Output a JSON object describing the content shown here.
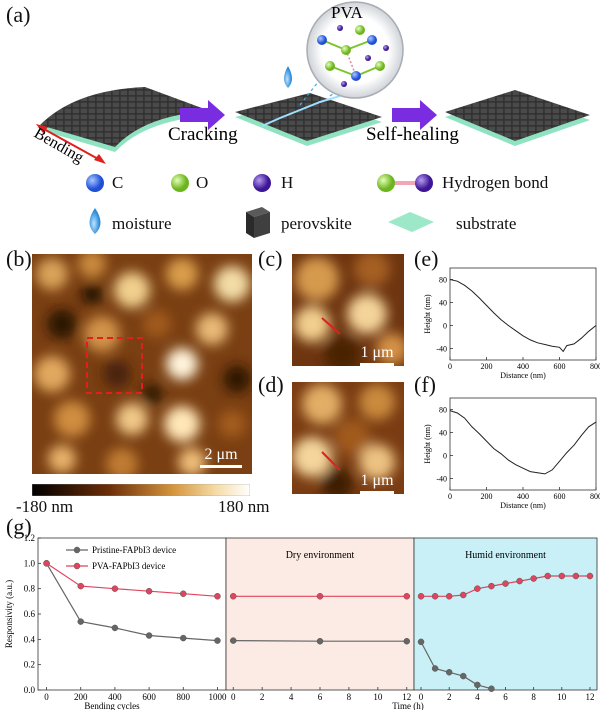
{
  "panels": {
    "a": "(a)",
    "b": "(b)",
    "c": "(c)",
    "d": "(d)",
    "e": "(e)",
    "f": "(f)",
    "g": "(g)"
  },
  "schematic": {
    "bubble_label": "PVA",
    "bending_label": "Bending",
    "cracking_label": "Cracking",
    "self_healing_label": "Self-healing",
    "legend": {
      "C": "C",
      "O": "O",
      "H": "H",
      "hbond": "Hydrogen bond",
      "moisture": "moisture",
      "perovskite": "perovskite",
      "substrate": "substrate"
    },
    "colors": {
      "C": "#1f4fd6",
      "O": "#7dc42c",
      "H": "#4b1ca8",
      "substrate": "#9de8c8",
      "arrow": "#7a2de0",
      "moisture": "#3a9be0",
      "perovskite": "#3a3a3a"
    }
  },
  "afm": {
    "scale_b": "2 μm",
    "scale_c": "1 μm",
    "scale_d": "1 μm",
    "colorbar_min": "-180 nm",
    "colorbar_max": "180 nm"
  },
  "chart_data": [
    {
      "id": "e",
      "type": "line",
      "xlabel": "Distance (nm)",
      "ylabel": "Height (nm)",
      "xlim": [
        0,
        800
      ],
      "ylim": [
        -60,
        100
      ],
      "xticks": [
        "0",
        "200",
        "400",
        "600",
        "800"
      ],
      "yticks": [
        "-40",
        "0",
        "40",
        "80"
      ],
      "series": [
        {
          "x": [
            0,
            40,
            80,
            120,
            160,
            200,
            240,
            280,
            320,
            360,
            400,
            440,
            480,
            520,
            560,
            600,
            620,
            640,
            680,
            720,
            760,
            800
          ],
          "y": [
            80,
            77,
            70,
            60,
            48,
            35,
            22,
            10,
            0,
            -9,
            -18,
            -25,
            -30,
            -33,
            -36,
            -38,
            -45,
            -35,
            -32,
            -22,
            -10,
            0
          ]
        }
      ]
    },
    {
      "id": "f",
      "type": "line",
      "xlabel": "Distance (nm)",
      "ylabel": "Height (nm)",
      "xlim": [
        0,
        800
      ],
      "ylim": [
        -60,
        100
      ],
      "xticks": [
        "0",
        "200",
        "400",
        "600",
        "800"
      ],
      "yticks": [
        "-40",
        "0",
        "40",
        "80"
      ],
      "series": [
        {
          "x": [
            0,
            40,
            80,
            120,
            160,
            200,
            240,
            280,
            320,
            360,
            400,
            440,
            480,
            520,
            560,
            600,
            640,
            680,
            720,
            760,
            800
          ],
          "y": [
            78,
            74,
            65,
            50,
            38,
            25,
            12,
            3,
            -8,
            -16,
            -22,
            -28,
            -30,
            -32,
            -25,
            -10,
            5,
            18,
            35,
            50,
            58
          ]
        }
      ]
    },
    {
      "id": "g",
      "type": "line",
      "ylabel": "Responsivity (a.u.)",
      "ylim": [
        0,
        1.2
      ],
      "yticks": [
        "0.0",
        "0.2",
        "0.4",
        "0.6",
        "0.8",
        "1.0",
        "1.2"
      ],
      "legend": [
        "Pristine-FAPbI3 device",
        "PVA-FAPbI3 device"
      ],
      "colors": {
        "pristine": "#666666",
        "pva": "#e0455e"
      },
      "sections": [
        {
          "title": "",
          "xlabel": "Bending cycles",
          "xlim": [
            -50,
            1050
          ],
          "xticks": [
            "0",
            "200",
            "400",
            "600",
            "800",
            "1000"
          ],
          "background": "#ffffff",
          "pristine": {
            "x": [
              0,
              200,
              400,
              600,
              800,
              1000
            ],
            "y": [
              1.0,
              0.54,
              0.49,
              0.43,
              0.41,
              0.39
            ]
          },
          "pva": {
            "x": [
              0,
              200,
              400,
              600,
              800,
              1000
            ],
            "y": [
              1.0,
              0.82,
              0.8,
              0.78,
              0.76,
              0.74
            ]
          }
        },
        {
          "title": "Dry environment",
          "xlabel": "",
          "xlim": [
            -0.5,
            12.5
          ],
          "xticks": [
            "0",
            "2",
            "4",
            "6",
            "8",
            "10",
            "12"
          ],
          "background": "#fbebe4",
          "pristine": {
            "x": [
              0,
              6,
              12
            ],
            "y": [
              0.39,
              0.385,
              0.385
            ]
          },
          "pva": {
            "x": [
              0,
              6,
              12
            ],
            "y": [
              0.74,
              0.74,
              0.74
            ]
          }
        },
        {
          "title": "Humid environment",
          "xlabel": "Time (h)",
          "xlim": [
            -0.5,
            12.5
          ],
          "xticks": [
            "0",
            "2",
            "4",
            "6",
            "8",
            "10",
            "12"
          ],
          "background": "#c8f0f6",
          "pristine": {
            "x": [
              0,
              1,
              2,
              3,
              4,
              5
            ],
            "y": [
              0.38,
              0.17,
              0.14,
              0.11,
              0.04,
              0.01
            ]
          },
          "pva": {
            "x": [
              0,
              1,
              2,
              3,
              4,
              5,
              6,
              7,
              8,
              9,
              10,
              11,
              12
            ],
            "y": [
              0.74,
              0.74,
              0.74,
              0.75,
              0.8,
              0.82,
              0.84,
              0.86,
              0.88,
              0.9,
              0.9,
              0.9,
              0.9
            ]
          }
        }
      ]
    }
  ]
}
